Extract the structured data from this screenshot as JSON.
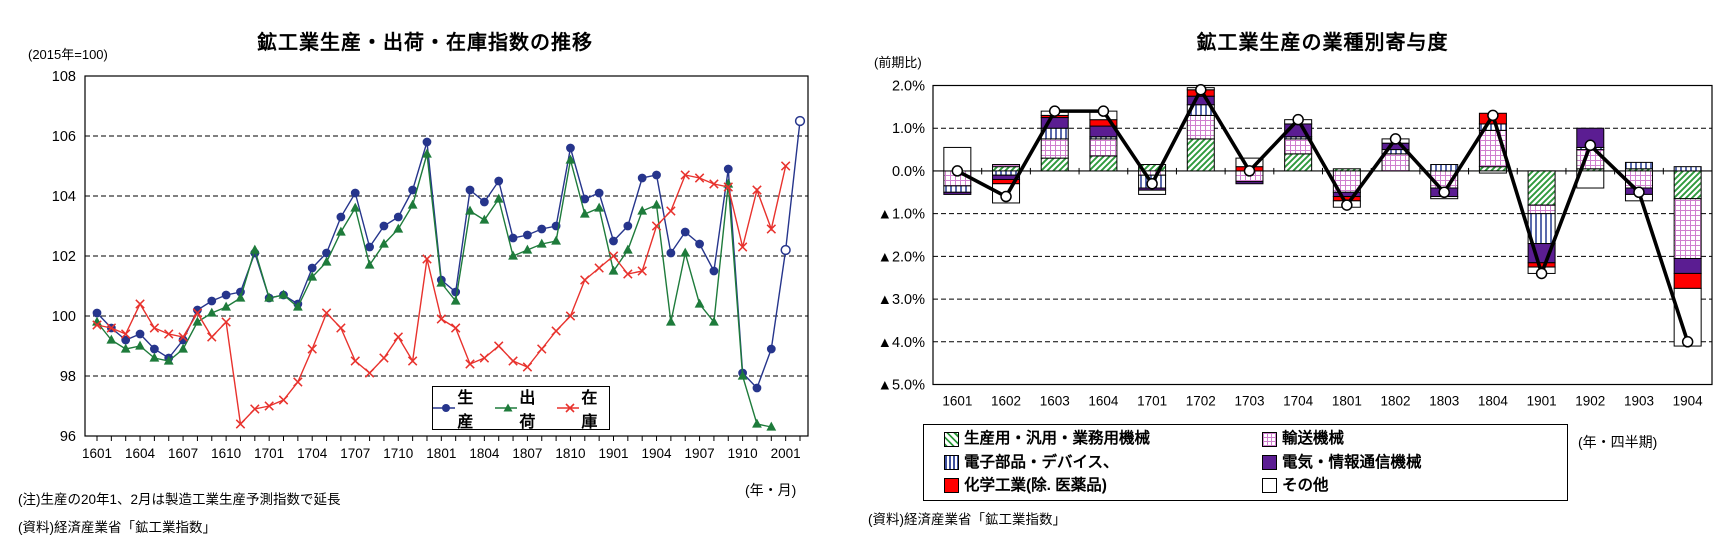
{
  "page": {
    "background": "#ffffff"
  },
  "left_chart": {
    "title": "鉱工業生産・出荷・在庫指数の推移",
    "unit_label": "(2015年=100)",
    "x_axis_unit": "(年・月)",
    "note": "(注)生産の20年1、2月は製造工業生産予測指数で延長",
    "source": "(資料)経済産業省「鉱工業指数」"
  },
  "right_chart": {
    "title": "鉱工業生産の業種別寄与度",
    "unit_label": "(前期比)",
    "x_axis_unit": "(年・四半期)",
    "source": "(資料)経済産業省「鉱工業指数」"
  },
  "chart_data": [
    {
      "type": "line",
      "title": "鉱工業生産・出荷・在庫指数の推移",
      "unit": "(2015年=100)",
      "x": [
        "1601",
        "1602",
        "1603",
        "1604",
        "1605",
        "1606",
        "1607",
        "1608",
        "1609",
        "1610",
        "1611",
        "1612",
        "1701",
        "1702",
        "1703",
        "1704",
        "1705",
        "1706",
        "1707",
        "1708",
        "1709",
        "1710",
        "1711",
        "1712",
        "1801",
        "1802",
        "1803",
        "1804",
        "1805",
        "1806",
        "1807",
        "1808",
        "1809",
        "1810",
        "1811",
        "1812",
        "1901",
        "1902",
        "1903",
        "1904",
        "1905",
        "1906",
        "1907",
        "1908",
        "1909",
        "1910",
        "1911",
        "1912",
        "2001",
        "2002"
      ],
      "x_tick_step": 3,
      "xlabel": "(年・月)",
      "ylim": [
        96,
        108
      ],
      "yticks": [
        96,
        98,
        100,
        102,
        104,
        106,
        108
      ],
      "grid": "horizontal-dashed",
      "legend_position": "inside-bottom-center",
      "series": [
        {
          "name": "生産",
          "color": "#26358c",
          "marker": "circle",
          "open_markers_from_index": 48,
          "values": [
            100.1,
            99.6,
            99.2,
            99.4,
            98.9,
            98.6,
            99.2,
            100.2,
            100.5,
            100.7,
            100.8,
            102.1,
            100.6,
            100.7,
            100.4,
            101.6,
            102.1,
            103.3,
            104.1,
            102.3,
            103.0,
            103.3,
            104.2,
            105.8,
            101.2,
            100.8,
            104.2,
            103.8,
            104.5,
            102.6,
            102.7,
            102.9,
            103.0,
            105.6,
            103.9,
            104.1,
            102.5,
            103.0,
            104.6,
            104.7,
            102.1,
            102.8,
            102.4,
            101.5,
            104.9,
            98.1,
            97.6,
            98.9,
            102.2,
            106.5
          ]
        },
        {
          "name": "出荷",
          "color": "#1e7b3b",
          "marker": "triangle",
          "values": [
            99.8,
            99.2,
            98.9,
            99.0,
            98.6,
            98.5,
            98.9,
            99.8,
            100.1,
            100.3,
            100.6,
            102.2,
            100.6,
            100.7,
            100.3,
            101.3,
            101.8,
            102.8,
            103.6,
            101.7,
            102.4,
            102.9,
            103.7,
            105.4,
            101.1,
            100.5,
            103.5,
            103.2,
            103.9,
            102.0,
            102.2,
            102.4,
            102.5,
            105.2,
            103.4,
            103.6,
            101.5,
            102.2,
            103.5,
            103.7,
            99.8,
            102.1,
            100.4,
            99.8,
            104.4,
            98.0,
            96.4,
            96.3,
            null,
            null
          ]
        },
        {
          "name": "在庫",
          "color": "#e8322d",
          "marker": "x",
          "values": [
            99.7,
            99.6,
            99.4,
            100.4,
            99.6,
            99.4,
            99.3,
            100.1,
            99.3,
            99.8,
            96.4,
            96.9,
            97.0,
            97.2,
            97.8,
            98.9,
            100.1,
            99.6,
            98.5,
            98.1,
            98.6,
            99.3,
            98.5,
            101.9,
            99.9,
            99.6,
            98.4,
            98.6,
            99.0,
            98.5,
            98.3,
            98.9,
            99.5,
            100.0,
            101.2,
            101.6,
            102.0,
            101.4,
            101.5,
            103.0,
            103.5,
            104.7,
            104.6,
            104.4,
            104.3,
            102.3,
            104.2,
            102.9,
            105.0,
            null
          ]
        }
      ]
    },
    {
      "type": "bar",
      "subtype": "stacked-with-line",
      "title": "鉱工業生産の業種別寄与度",
      "unit": "(前期比)",
      "categories": [
        "1601",
        "1602",
        "1603",
        "1604",
        "1701",
        "1702",
        "1703",
        "1704",
        "1801",
        "1802",
        "1803",
        "1804",
        "1901",
        "1902",
        "1903",
        "1904"
      ],
      "xlabel": "(年・四半期)",
      "ylim": [
        -5,
        2
      ],
      "ytick_values": [
        2,
        1,
        0,
        -1,
        -2,
        -3,
        -4,
        -5
      ],
      "ytick_labels": [
        "2.0%",
        "1.0%",
        "0.0%",
        "▲1.0%",
        "▲2.0%",
        "▲3.0%",
        "▲4.0%",
        "▲5.0%"
      ],
      "grid": "horizontal-dashed",
      "series": [
        {
          "name": "生産用・汎用・業務用機械",
          "pattern": "green-diagonal-hatch",
          "color": "#2f9a3d",
          "values": [
            0.0,
            0.1,
            0.3,
            0.35,
            0.15,
            0.75,
            0.0,
            0.4,
            0.05,
            0.0,
            0.0,
            0.1,
            -0.8,
            0.05,
            0.05,
            -0.65
          ]
        },
        {
          "name": "輸送機械",
          "pattern": "pink-grid",
          "color": "#cf7fce",
          "values": [
            -0.35,
            0.05,
            0.45,
            0.4,
            -0.1,
            0.55,
            -0.25,
            0.35,
            -0.5,
            0.4,
            -0.4,
            0.85,
            -0.2,
            0.45,
            -0.4,
            -1.4
          ]
        },
        {
          "name": "電子部品・デバイス、",
          "pattern": "blue-vertical-stripes",
          "color": "#3d4f9e",
          "values": [
            -0.15,
            -0.1,
            0.25,
            0.05,
            -0.3,
            0.25,
            0.0,
            0.05,
            0.0,
            0.1,
            0.15,
            0.15,
            -0.7,
            0.05,
            0.15,
            0.1
          ]
        },
        {
          "name": "電気・情報通信機械",
          "pattern": "solid",
          "color": "#5b1d92",
          "values": [
            -0.05,
            -0.1,
            0.25,
            0.25,
            -0.05,
            0.2,
            -0.05,
            0.3,
            -0.1,
            0.15,
            -0.2,
            0.0,
            -0.45,
            0.45,
            -0.15,
            -0.35
          ]
        },
        {
          "name": "化学工業(除. 医薬品)",
          "pattern": "solid",
          "color": "#ff0000",
          "values": [
            0.0,
            -0.1,
            0.05,
            0.15,
            0.0,
            0.15,
            0.1,
            0.0,
            -0.1,
            0.0,
            0.0,
            0.25,
            -0.1,
            0.0,
            0.0,
            -0.35
          ]
        },
        {
          "name": "その他",
          "pattern": "solid",
          "color": "#ffffff",
          "values": [
            0.55,
            -0.45,
            0.1,
            0.2,
            -0.1,
            0.05,
            0.2,
            0.1,
            -0.15,
            0.1,
            -0.05,
            -0.05,
            -0.15,
            -0.4,
            -0.15,
            -1.35
          ]
        }
      ],
      "total_line": {
        "color": "#000000",
        "marker": "open-circle",
        "values": [
          0.0,
          -0.6,
          1.4,
          1.4,
          -0.3,
          1.9,
          0.0,
          1.2,
          -0.8,
          0.75,
          -0.5,
          1.3,
          -2.4,
          0.6,
          -0.5,
          -4.0
        ]
      }
    }
  ]
}
